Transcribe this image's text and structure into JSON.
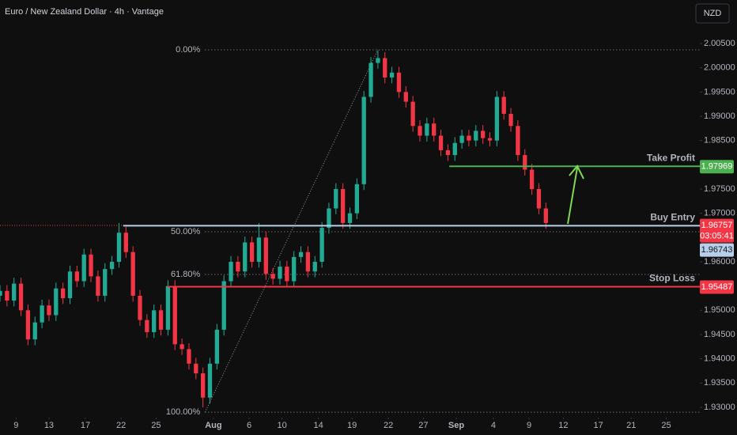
{
  "chart_data": {
    "type": "candlestick",
    "title": "Euro / New Zealand Dollar · 4h · Vantage",
    "currency_button": "NZD",
    "up_color": "#22ab94",
    "down_color": "#f23645",
    "x": [
      0,
      1,
      2,
      3,
      4,
      5,
      6,
      7,
      8,
      9,
      10,
      11,
      12,
      13,
      14,
      15,
      16,
      17,
      18,
      19,
      20,
      21,
      22,
      23,
      24,
      25,
      26,
      27,
      28,
      29,
      30,
      31,
      32,
      33,
      34,
      35,
      36,
      37,
      38,
      39,
      40,
      41,
      42,
      43,
      44,
      45,
      46,
      47,
      48,
      49,
      50,
      51,
      52,
      53,
      54,
      55,
      56,
      57,
      58,
      59,
      60,
      61,
      62,
      63,
      64,
      65,
      66,
      67,
      68,
      69,
      70,
      71,
      72,
      73,
      74,
      75,
      76,
      77,
      78
    ],
    "open": [
      1.953,
      1.954,
      1.952,
      1.9555,
      1.95,
      1.944,
      1.9475,
      1.951,
      1.949,
      1.9545,
      1.9525,
      1.958,
      1.956,
      1.9615,
      1.957,
      1.953,
      1.9585,
      1.96,
      1.966,
      1.962,
      1.953,
      1.948,
      1.9455,
      1.95,
      1.946,
      1.955,
      1.943,
      1.942,
      1.939,
      1.937,
      1.932,
      1.939,
      1.946,
      1.956,
      1.96,
      1.958,
      1.964,
      1.96,
      1.965,
      1.9575,
      1.9565,
      1.959,
      1.956,
      1.961,
      1.962,
      1.958,
      1.96,
      1.967,
      1.971,
      1.975,
      1.968,
      1.97,
      1.976,
      1.994,
      2.001,
      2.002,
      1.998,
      1.999,
      1.995,
      1.993,
      1.988,
      1.986,
      1.9885,
      1.986,
      1.983,
      1.982,
      1.9845,
      1.986,
      1.985,
      1.987,
      1.9855,
      1.985,
      1.994,
      1.9905,
      1.988,
      1.982,
      1.979,
      1.975,
      1.971
    ],
    "high": [
      1.9552,
      1.9552,
      1.9567,
      1.9567,
      1.9512,
      1.9487,
      1.9522,
      1.9522,
      1.9557,
      1.9557,
      1.9592,
      1.9592,
      1.9627,
      1.9627,
      1.9582,
      1.9597,
      1.9612,
      1.968,
      1.9672,
      1.9632,
      1.9542,
      1.9492,
      1.9512,
      1.9512,
      1.9562,
      1.9562,
      1.9442,
      1.9432,
      1.9402,
      1.9382,
      1.9402,
      1.9472,
      1.9572,
      1.9612,
      1.9612,
      1.9652,
      1.9652,
      1.968,
      1.9662,
      1.9587,
      1.9602,
      1.9602,
      1.9622,
      1.9632,
      1.9632,
      1.9612,
      1.9682,
      1.9722,
      1.9762,
      1.9762,
      1.9712,
      1.9772,
      1.9952,
      2.0022,
      2.0035,
      2.0032,
      2.0002,
      2.0002,
      1.9962,
      1.9942,
      1.9892,
      1.9897,
      1.9897,
      1.9872,
      1.9842,
      1.9857,
      1.9872,
      1.9872,
      1.9882,
      1.9882,
      1.9867,
      1.9952,
      1.9952,
      1.9917,
      1.9892,
      1.9832,
      1.9802,
      1.9762,
      1.9722
    ],
    "low": [
      1.9518,
      1.9508,
      1.9508,
      1.9488,
      1.9428,
      1.9428,
      1.9463,
      1.9478,
      1.9478,
      1.9513,
      1.9513,
      1.9548,
      1.9548,
      1.9558,
      1.9518,
      1.9518,
      1.9573,
      1.9588,
      1.9608,
      1.9518,
      1.9468,
      1.9443,
      1.9443,
      1.9448,
      1.9448,
      1.9418,
      1.9408,
      1.9378,
      1.9358,
      1.93,
      1.9308,
      1.9378,
      1.9448,
      1.9548,
      1.9568,
      1.9568,
      1.9588,
      1.9588,
      1.9563,
      1.9553,
      1.9553,
      1.9548,
      1.9548,
      1.9598,
      1.9568,
      1.9568,
      1.9588,
      1.9658,
      1.9698,
      1.9668,
      1.9668,
      1.9688,
      1.9748,
      1.9928,
      1.9998,
      1.9968,
      1.9968,
      1.9938,
      1.9918,
      1.9868,
      1.9848,
      1.9848,
      1.9848,
      1.9818,
      1.9808,
      1.9808,
      1.9833,
      1.9838,
      1.9838,
      1.9843,
      1.9838,
      1.9838,
      1.9893,
      1.9868,
      1.9808,
      1.9778,
      1.9738,
      1.9698,
      1.9668
    ],
    "close": [
      1.954,
      1.952,
      1.9555,
      1.95,
      1.944,
      1.9475,
      1.951,
      1.949,
      1.9545,
      1.9525,
      1.958,
      1.956,
      1.9615,
      1.957,
      1.953,
      1.9585,
      1.96,
      1.966,
      1.962,
      1.953,
      1.948,
      1.9455,
      1.95,
      1.946,
      1.955,
      1.943,
      1.942,
      1.939,
      1.937,
      1.932,
      1.939,
      1.946,
      1.956,
      1.96,
      1.958,
      1.964,
      1.96,
      1.965,
      1.9575,
      1.9565,
      1.959,
      1.956,
      1.961,
      1.962,
      1.958,
      1.96,
      1.967,
      1.971,
      1.975,
      1.968,
      1.97,
      1.976,
      1.994,
      2.001,
      2.002,
      1.998,
      1.999,
      1.995,
      1.993,
      1.988,
      1.986,
      1.9885,
      1.986,
      1.983,
      1.982,
      1.9845,
      1.986,
      1.985,
      1.987,
      1.9855,
      1.985,
      1.994,
      1.9905,
      1.988,
      1.982,
      1.979,
      1.975,
      1.971,
      1.968
    ],
    "xlim": [
      0,
      100
    ],
    "xticks": [
      {
        "value": 2.3,
        "label": "9"
      },
      {
        "value": 7.0,
        "label": "13"
      },
      {
        "value": 12.2,
        "label": "17"
      },
      {
        "value": 17.3,
        "label": "22"
      },
      {
        "value": 22.3,
        "label": "25"
      },
      {
        "value": 30.5,
        "label": "Aug"
      },
      {
        "value": 35.6,
        "label": "6"
      },
      {
        "value": 40.3,
        "label": "10"
      },
      {
        "value": 45.5,
        "label": "14"
      },
      {
        "value": 50.3,
        "label": "19"
      },
      {
        "value": 55.5,
        "label": "22"
      },
      {
        "value": 60.5,
        "label": "27"
      },
      {
        "value": 65.2,
        "label": "Sep"
      },
      {
        "value": 70.5,
        "label": "4"
      },
      {
        "value": 75.6,
        "label": "9"
      },
      {
        "value": 80.5,
        "label": "12"
      },
      {
        "value": 85.5,
        "label": "17"
      },
      {
        "value": 90.2,
        "label": "21"
      },
      {
        "value": 95.2,
        "label": "25"
      }
    ],
    "ylim": [
      1.92788,
      2.01397
    ],
    "yticks": [
      {
        "value": 2.005,
        "label": "2.00500"
      },
      {
        "value": 2.0,
        "label": "2.00000"
      },
      {
        "value": 1.995,
        "label": "1.99500"
      },
      {
        "value": 1.99,
        "label": "1.99000"
      },
      {
        "value": 1.985,
        "label": "1.98500"
      },
      {
        "value": 1.975,
        "label": "1.97500"
      },
      {
        "value": 1.97,
        "label": "1.97000"
      },
      {
        "value": 1.96,
        "label": "1.96000"
      },
      {
        "value": 1.95,
        "label": "1.95000"
      },
      {
        "value": 1.945,
        "label": "1.94500"
      },
      {
        "value": 1.94,
        "label": "1.94000"
      },
      {
        "value": 1.935,
        "label": "1.93500"
      },
      {
        "value": 1.93,
        "label": "1.93000"
      }
    ],
    "fib": {
      "x_start": 29.3,
      "x_end": 54,
      "levels": [
        {
          "label": "0.00%",
          "value": 2.0037
        },
        {
          "label": "50.00%",
          "value": 1.9662
        },
        {
          "label": "61.80%",
          "value": 1.9574
        },
        {
          "label": "100.00%",
          "value": 1.929
        }
      ]
    },
    "levels": [
      {
        "name": "Take Profit",
        "value": 1.97969,
        "color": "#4caf50",
        "x_start": 64.2
      },
      {
        "name": "Buy Entry",
        "value": 1.96743,
        "color": "#b7cfe8",
        "x_start": 17.6
      },
      {
        "name": "Stop Loss",
        "value": 1.95487,
        "color": "#f23645",
        "x_start": 23.9
      }
    ],
    "last_price": {
      "value": 1.96757,
      "countdown": "03:05:41",
      "color": "#f23645"
    }
  }
}
